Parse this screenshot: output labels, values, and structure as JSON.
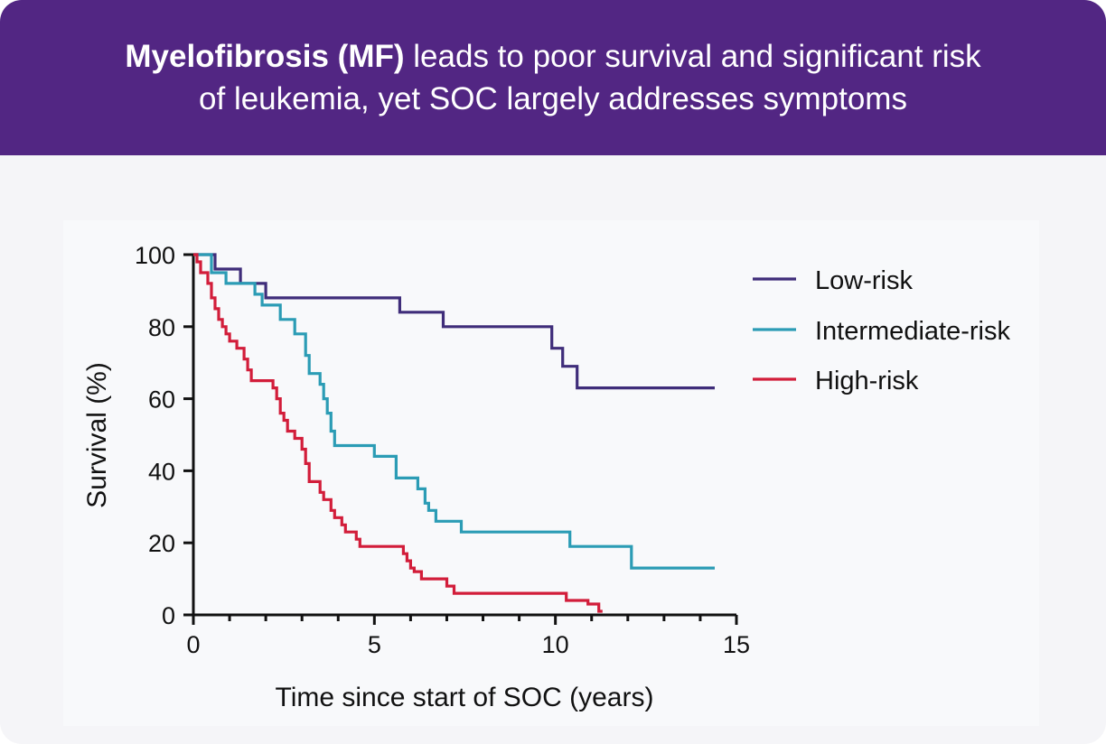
{
  "header": {
    "title_bold": "Myelofibrosis (MF)",
    "title_line1_rest": " leads to poor survival and significant risk",
    "title_line2": "of leukemia, yet SOC largely addresses symptoms"
  },
  "colors": {
    "header_bg": "#522683",
    "low_risk": "#3f2d7a",
    "intermediate_risk": "#2b9cb5",
    "high_risk": "#d21d3a"
  },
  "chart_data": {
    "type": "line",
    "subtype": "kaplan-meier step",
    "xlabel": "Time since start of SOC (years)",
    "ylabel": "Survival (%)",
    "xlim": [
      0,
      15
    ],
    "ylim": [
      0,
      100
    ],
    "xticks": [
      0,
      5,
      10,
      15
    ],
    "yticks": [
      0,
      20,
      40,
      60,
      80,
      100
    ],
    "grid": false,
    "legend_position": "top-right",
    "series": [
      {
        "name": "Low-risk",
        "color": "#3f2d7a",
        "points": [
          [
            0,
            100
          ],
          [
            0.6,
            100
          ],
          [
            0.6,
            96
          ],
          [
            1.3,
            96
          ],
          [
            1.3,
            92
          ],
          [
            2.0,
            92
          ],
          [
            2.0,
            88
          ],
          [
            5.7,
            88
          ],
          [
            5.7,
            84
          ],
          [
            6.9,
            84
          ],
          [
            6.9,
            80
          ],
          [
            9.9,
            80
          ],
          [
            9.9,
            74
          ],
          [
            10.2,
            74
          ],
          [
            10.2,
            69
          ],
          [
            10.6,
            69
          ],
          [
            10.6,
            63
          ],
          [
            14.4,
            63
          ]
        ]
      },
      {
        "name": "Intermediate-risk",
        "color": "#2b9cb5",
        "points": [
          [
            0,
            100
          ],
          [
            0.5,
            100
          ],
          [
            0.5,
            95
          ],
          [
            0.9,
            95
          ],
          [
            0.9,
            92
          ],
          [
            1.7,
            92
          ],
          [
            1.7,
            89
          ],
          [
            1.9,
            89
          ],
          [
            1.9,
            86
          ],
          [
            2.4,
            86
          ],
          [
            2.4,
            82
          ],
          [
            2.8,
            82
          ],
          [
            2.8,
            78
          ],
          [
            3.1,
            78
          ],
          [
            3.1,
            72
          ],
          [
            3.2,
            72
          ],
          [
            3.2,
            67
          ],
          [
            3.5,
            67
          ],
          [
            3.5,
            64
          ],
          [
            3.6,
            64
          ],
          [
            3.6,
            60
          ],
          [
            3.7,
            60
          ],
          [
            3.7,
            56
          ],
          [
            3.8,
            56
          ],
          [
            3.8,
            51
          ],
          [
            3.9,
            51
          ],
          [
            3.9,
            47
          ],
          [
            5.0,
            47
          ],
          [
            5.0,
            44
          ],
          [
            5.6,
            44
          ],
          [
            5.6,
            38
          ],
          [
            6.2,
            38
          ],
          [
            6.2,
            35
          ],
          [
            6.4,
            35
          ],
          [
            6.4,
            31
          ],
          [
            6.5,
            31
          ],
          [
            6.5,
            29
          ],
          [
            6.7,
            29
          ],
          [
            6.7,
            26
          ],
          [
            7.4,
            26
          ],
          [
            7.4,
            23
          ],
          [
            10.4,
            23
          ],
          [
            10.4,
            19
          ],
          [
            12.1,
            19
          ],
          [
            12.1,
            13
          ],
          [
            14.4,
            13
          ]
        ]
      },
      {
        "name": "High-risk",
        "color": "#d21d3a",
        "points": [
          [
            0,
            100
          ],
          [
            0.1,
            100
          ],
          [
            0.1,
            98
          ],
          [
            0.2,
            98
          ],
          [
            0.2,
            95
          ],
          [
            0.4,
            95
          ],
          [
            0.4,
            92
          ],
          [
            0.5,
            92
          ],
          [
            0.5,
            88
          ],
          [
            0.6,
            88
          ],
          [
            0.6,
            85
          ],
          [
            0.7,
            85
          ],
          [
            0.7,
            82
          ],
          [
            0.8,
            82
          ],
          [
            0.8,
            80
          ],
          [
            0.9,
            80
          ],
          [
            0.9,
            78
          ],
          [
            1.0,
            78
          ],
          [
            1.0,
            76
          ],
          [
            1.2,
            76
          ],
          [
            1.2,
            74
          ],
          [
            1.4,
            74
          ],
          [
            1.4,
            71
          ],
          [
            1.5,
            71
          ],
          [
            1.5,
            68
          ],
          [
            1.6,
            68
          ],
          [
            1.6,
            65
          ],
          [
            2.2,
            65
          ],
          [
            2.2,
            63
          ],
          [
            2.3,
            63
          ],
          [
            2.3,
            60
          ],
          [
            2.4,
            60
          ],
          [
            2.4,
            56
          ],
          [
            2.5,
            56
          ],
          [
            2.5,
            54
          ],
          [
            2.6,
            54
          ],
          [
            2.6,
            51
          ],
          [
            2.8,
            51
          ],
          [
            2.8,
            49
          ],
          [
            3.0,
            49
          ],
          [
            3.0,
            46
          ],
          [
            3.1,
            46
          ],
          [
            3.1,
            42
          ],
          [
            3.2,
            42
          ],
          [
            3.2,
            37
          ],
          [
            3.5,
            37
          ],
          [
            3.5,
            34
          ],
          [
            3.6,
            34
          ],
          [
            3.6,
            32
          ],
          [
            3.8,
            32
          ],
          [
            3.8,
            29
          ],
          [
            3.9,
            29
          ],
          [
            3.9,
            27
          ],
          [
            4.1,
            27
          ],
          [
            4.1,
            25
          ],
          [
            4.2,
            25
          ],
          [
            4.2,
            23
          ],
          [
            4.5,
            23
          ],
          [
            4.5,
            21
          ],
          [
            4.6,
            21
          ],
          [
            4.6,
            19
          ],
          [
            5.8,
            19
          ],
          [
            5.8,
            17
          ],
          [
            5.9,
            17
          ],
          [
            5.9,
            15
          ],
          [
            6.0,
            15
          ],
          [
            6.0,
            13
          ],
          [
            6.1,
            13
          ],
          [
            6.1,
            12
          ],
          [
            6.3,
            12
          ],
          [
            6.3,
            10
          ],
          [
            7.0,
            10
          ],
          [
            7.0,
            8
          ],
          [
            7.2,
            8
          ],
          [
            7.2,
            6
          ],
          [
            10.3,
            6
          ],
          [
            10.3,
            4
          ],
          [
            10.9,
            4
          ],
          [
            10.9,
            3
          ],
          [
            11.2,
            3
          ],
          [
            11.2,
            1
          ],
          [
            11.3,
            1
          ]
        ]
      }
    ]
  }
}
